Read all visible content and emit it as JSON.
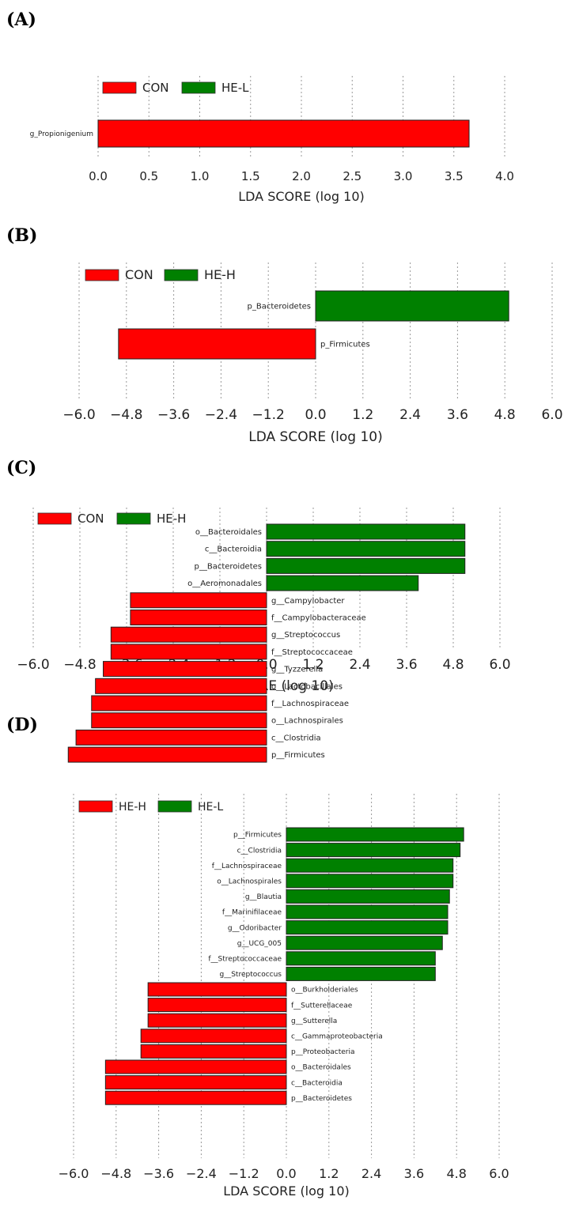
{
  "chart_data": [
    {
      "panel_label": "(A)",
      "type": "bar",
      "orientation": "horizontal",
      "xlabel": "LDA SCORE (log 10)",
      "xlim": [
        0.0,
        4.0
      ],
      "xticks": [
        "0.0",
        "0.5",
        "1.0",
        "1.5",
        "2.0",
        "2.5",
        "3.0",
        "3.5",
        "4.0"
      ],
      "grid": true,
      "legend_placement": "top-left",
      "legend": [
        {
          "name": "CON",
          "color": "#ff0000"
        },
        {
          "name": "HE-L",
          "color": "#008000"
        }
      ],
      "labels_side": "left",
      "bars": [
        {
          "label": "g_Propionigenium",
          "value": 3.65,
          "group": "CON"
        }
      ]
    },
    {
      "panel_label": "(B)",
      "type": "bar",
      "orientation": "horizontal",
      "xlabel": "LDA SCORE (log 10)",
      "xlim": [
        -6.0,
        6.0
      ],
      "xticks": [
        "−6.0",
        "−4.8",
        "−3.6",
        "−2.4",
        "−1.2",
        "0.0",
        "1.2",
        "2.4",
        "3.6",
        "4.8",
        "6.0"
      ],
      "grid": true,
      "legend_placement": "top-left",
      "legend": [
        {
          "name": "CON",
          "color": "#ff0000"
        },
        {
          "name": "HE-H",
          "color": "#008000"
        }
      ],
      "labels_side": "opposite",
      "bars": [
        {
          "label": "p_Bacteroidetes",
          "value": 4.9,
          "group": "HE-H"
        },
        {
          "label": "p_Firmicutes",
          "value": -5.0,
          "group": "CON"
        }
      ]
    },
    {
      "panel_label": "(C)",
      "type": "bar",
      "orientation": "horizontal",
      "xlabel": "LDA SCORE (log 10)",
      "xlim": [
        -6.0,
        6.0
      ],
      "xticks": [
        "−6.0",
        "−4.8",
        "−3.6",
        "−2.4",
        "−1.2",
        "0.0",
        "1.2",
        "2.4",
        "3.6",
        "4.8",
        "6.0"
      ],
      "grid": true,
      "legend_placement": "top-left",
      "legend": [
        {
          "name": "CON",
          "color": "#ff0000"
        },
        {
          "name": "HE-H",
          "color": "#008000"
        }
      ],
      "labels_side": "opposite",
      "bars": [
        {
          "label": "o__Bacteroidales",
          "value": 5.1,
          "group": "HE-H"
        },
        {
          "label": "c__Bacteroidia",
          "value": 5.1,
          "group": "HE-H"
        },
        {
          "label": "p__Bacteroidetes",
          "value": 5.1,
          "group": "HE-H"
        },
        {
          "label": "o__Aeromonadales",
          "value": 3.9,
          "group": "HE-H"
        },
        {
          "label": "g__Campylobacter",
          "value": -3.5,
          "group": "CON"
        },
        {
          "label": "f__Campylobacteraceae",
          "value": -3.5,
          "group": "CON"
        },
        {
          "label": "g__Streptococcus",
          "value": -4.0,
          "group": "CON"
        },
        {
          "label": "f__Streptococcaceae",
          "value": -4.0,
          "group": "CON"
        },
        {
          "label": "g__Tyzzerella",
          "value": -4.2,
          "group": "CON"
        },
        {
          "label": "o__Lactobacillales",
          "value": -4.4,
          "group": "CON"
        },
        {
          "label": "f__Lachnospiraceae",
          "value": -4.5,
          "group": "CON"
        },
        {
          "label": "o__Lachnospirales",
          "value": -4.5,
          "group": "CON"
        },
        {
          "label": "c__Clostridia",
          "value": -4.9,
          "group": "CON"
        },
        {
          "label": "p__Firmicutes",
          "value": -5.1,
          "group": "CON"
        }
      ]
    },
    {
      "panel_label": "(D)",
      "type": "bar",
      "orientation": "horizontal",
      "xlabel": "LDA SCORE (log 10)",
      "xlim": [
        -6.0,
        6.0
      ],
      "xticks": [
        "−6.0",
        "−4.8",
        "−3.6",
        "−2.4",
        "−1.2",
        "0.0",
        "1.2",
        "2.4",
        "3.6",
        "4.8",
        "6.0"
      ],
      "grid": true,
      "legend_placement": "top-left",
      "legend": [
        {
          "name": "HE-H",
          "color": "#ff0000"
        },
        {
          "name": "HE-L",
          "color": "#008000"
        }
      ],
      "labels_side": "opposite",
      "bars": [
        {
          "label": "p__Firmicutes",
          "value": 5.0,
          "group": "HE-L"
        },
        {
          "label": "c__Clostridia",
          "value": 4.9,
          "group": "HE-L"
        },
        {
          "label": "f__Lachnospiraceae",
          "value": 4.7,
          "group": "HE-L"
        },
        {
          "label": "o__Lachnospirales",
          "value": 4.7,
          "group": "HE-L"
        },
        {
          "label": "g__Blautia",
          "value": 4.6,
          "group": "HE-L"
        },
        {
          "label": "f__Marinifilaceae",
          "value": 4.55,
          "group": "HE-L"
        },
        {
          "label": "g__Odoribacter",
          "value": 4.55,
          "group": "HE-L"
        },
        {
          "label": "g__UCG_005",
          "value": 4.4,
          "group": "HE-L"
        },
        {
          "label": "f__Streptococcaceae",
          "value": 4.2,
          "group": "HE-L"
        },
        {
          "label": "g__Streptococcus",
          "value": 4.2,
          "group": "HE-L"
        },
        {
          "label": "o__Burkholderiales",
          "value": -3.9,
          "group": "HE-H"
        },
        {
          "label": "f__Sutterellaceae",
          "value": -3.9,
          "group": "HE-H"
        },
        {
          "label": "g__Sutterella",
          "value": -3.9,
          "group": "HE-H"
        },
        {
          "label": "c__Gammaproteobacteria",
          "value": -4.1,
          "group": "HE-H"
        },
        {
          "label": "p__Proteobacteria",
          "value": -4.1,
          "group": "HE-H"
        },
        {
          "label": "o__Bacteroidales",
          "value": -5.1,
          "group": "HE-H"
        },
        {
          "label": "c__Bacteroidia",
          "value": -5.1,
          "group": "HE-H"
        },
        {
          "label": "p__Bacteroidetes",
          "value": -5.1,
          "group": "HE-H"
        }
      ]
    }
  ]
}
